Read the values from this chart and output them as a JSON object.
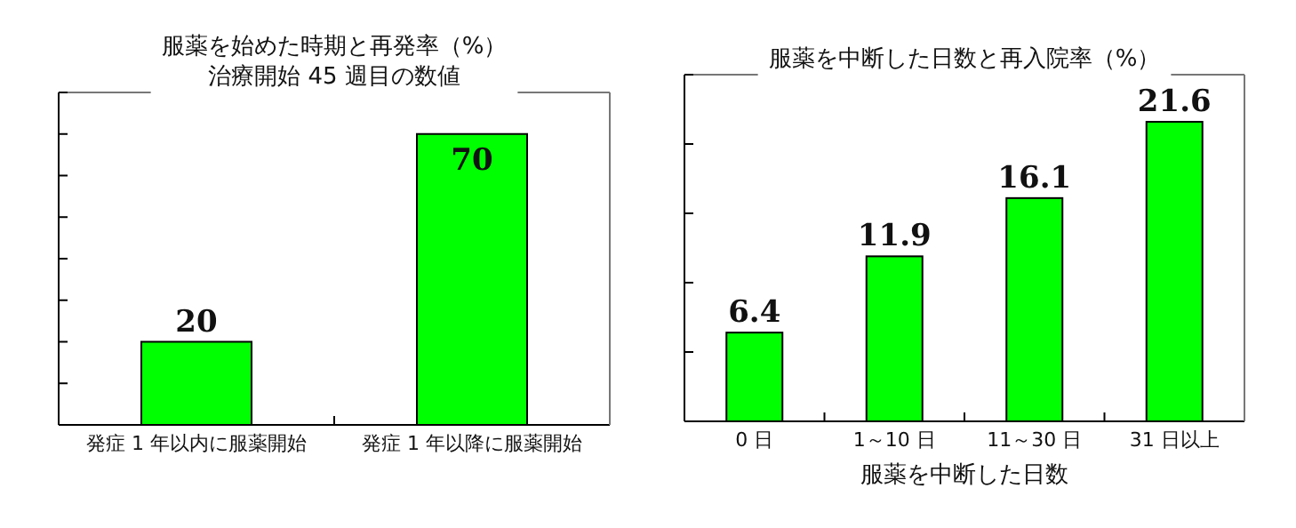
{
  "chart_data": [
    {
      "type": "bar",
      "title": "服薬を始めた時期と再発率（%）",
      "subtitle": "治療開始 45 週目の数値",
      "categories": [
        "発症 1 年以内に服薬開始",
        "発症 1 年以降に服薬開始"
      ],
      "values": [
        20,
        70
      ],
      "color": "#00ff00",
      "ylim": [
        0,
        80
      ],
      "yticks": [
        {
          "value": 0,
          "label": null
        },
        {
          "value": 10,
          "label": null
        },
        {
          "value": 20,
          "label": null
        },
        {
          "value": 30,
          "label": null
        },
        {
          "value": 40,
          "label": null
        },
        {
          "value": 50,
          "label": null
        },
        {
          "value": 60,
          "label": null
        },
        {
          "value": 70,
          "label": null
        },
        {
          "value": 80,
          "label": null
        }
      ],
      "data_labels": true,
      "tick_labels": "x"
    },
    {
      "type": "bar",
      "title": "服薬を中断した日数と再入院率（%）",
      "xlabel": "服薬を中断した日数",
      "categories": [
        "0 日",
        "1～10 日",
        "11～30 日",
        "31 日以上"
      ],
      "values": [
        6.4,
        11.9,
        16.1,
        21.6
      ],
      "color": "#00ff00",
      "ylim": [
        0,
        25
      ],
      "yticks": [
        {
          "value": 0,
          "label": null
        },
        {
          "value": 5,
          "label": null
        },
        {
          "value": 10,
          "label": null
        },
        {
          "value": 15,
          "label": null
        },
        {
          "value": 20,
          "label": null
        },
        {
          "value": 25,
          "label": null
        }
      ],
      "data_labels": true,
      "tick_labels": "x"
    }
  ]
}
